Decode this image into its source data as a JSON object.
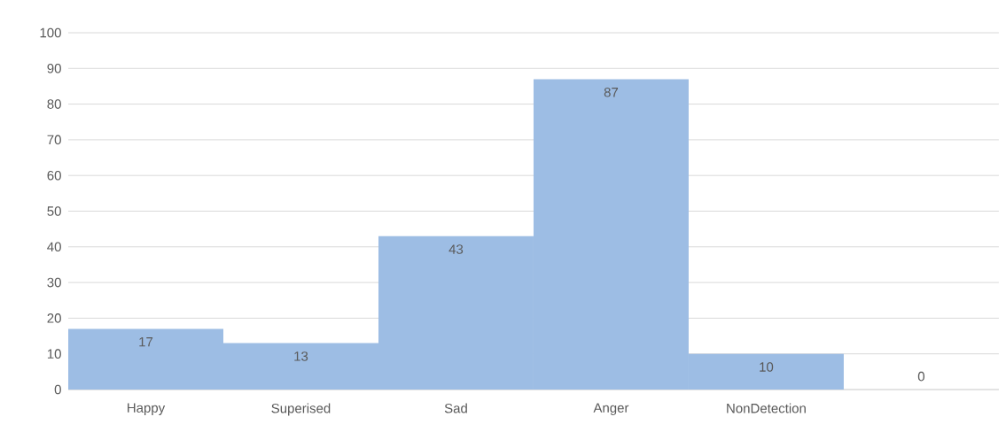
{
  "chart_data": {
    "type": "bar",
    "categories": [
      "Happy",
      "Superised",
      "Sad",
      "Anger",
      "NonDetection",
      null
    ],
    "values": [
      17,
      13,
      43,
      87,
      10,
      0
    ],
    "color": "#9dbde4",
    "data_labels": true,
    "ylim": [
      0,
      100
    ],
    "yticks": [
      0,
      10,
      20,
      30,
      40,
      50,
      60,
      70,
      80,
      90,
      100
    ],
    "grid": "y"
  }
}
